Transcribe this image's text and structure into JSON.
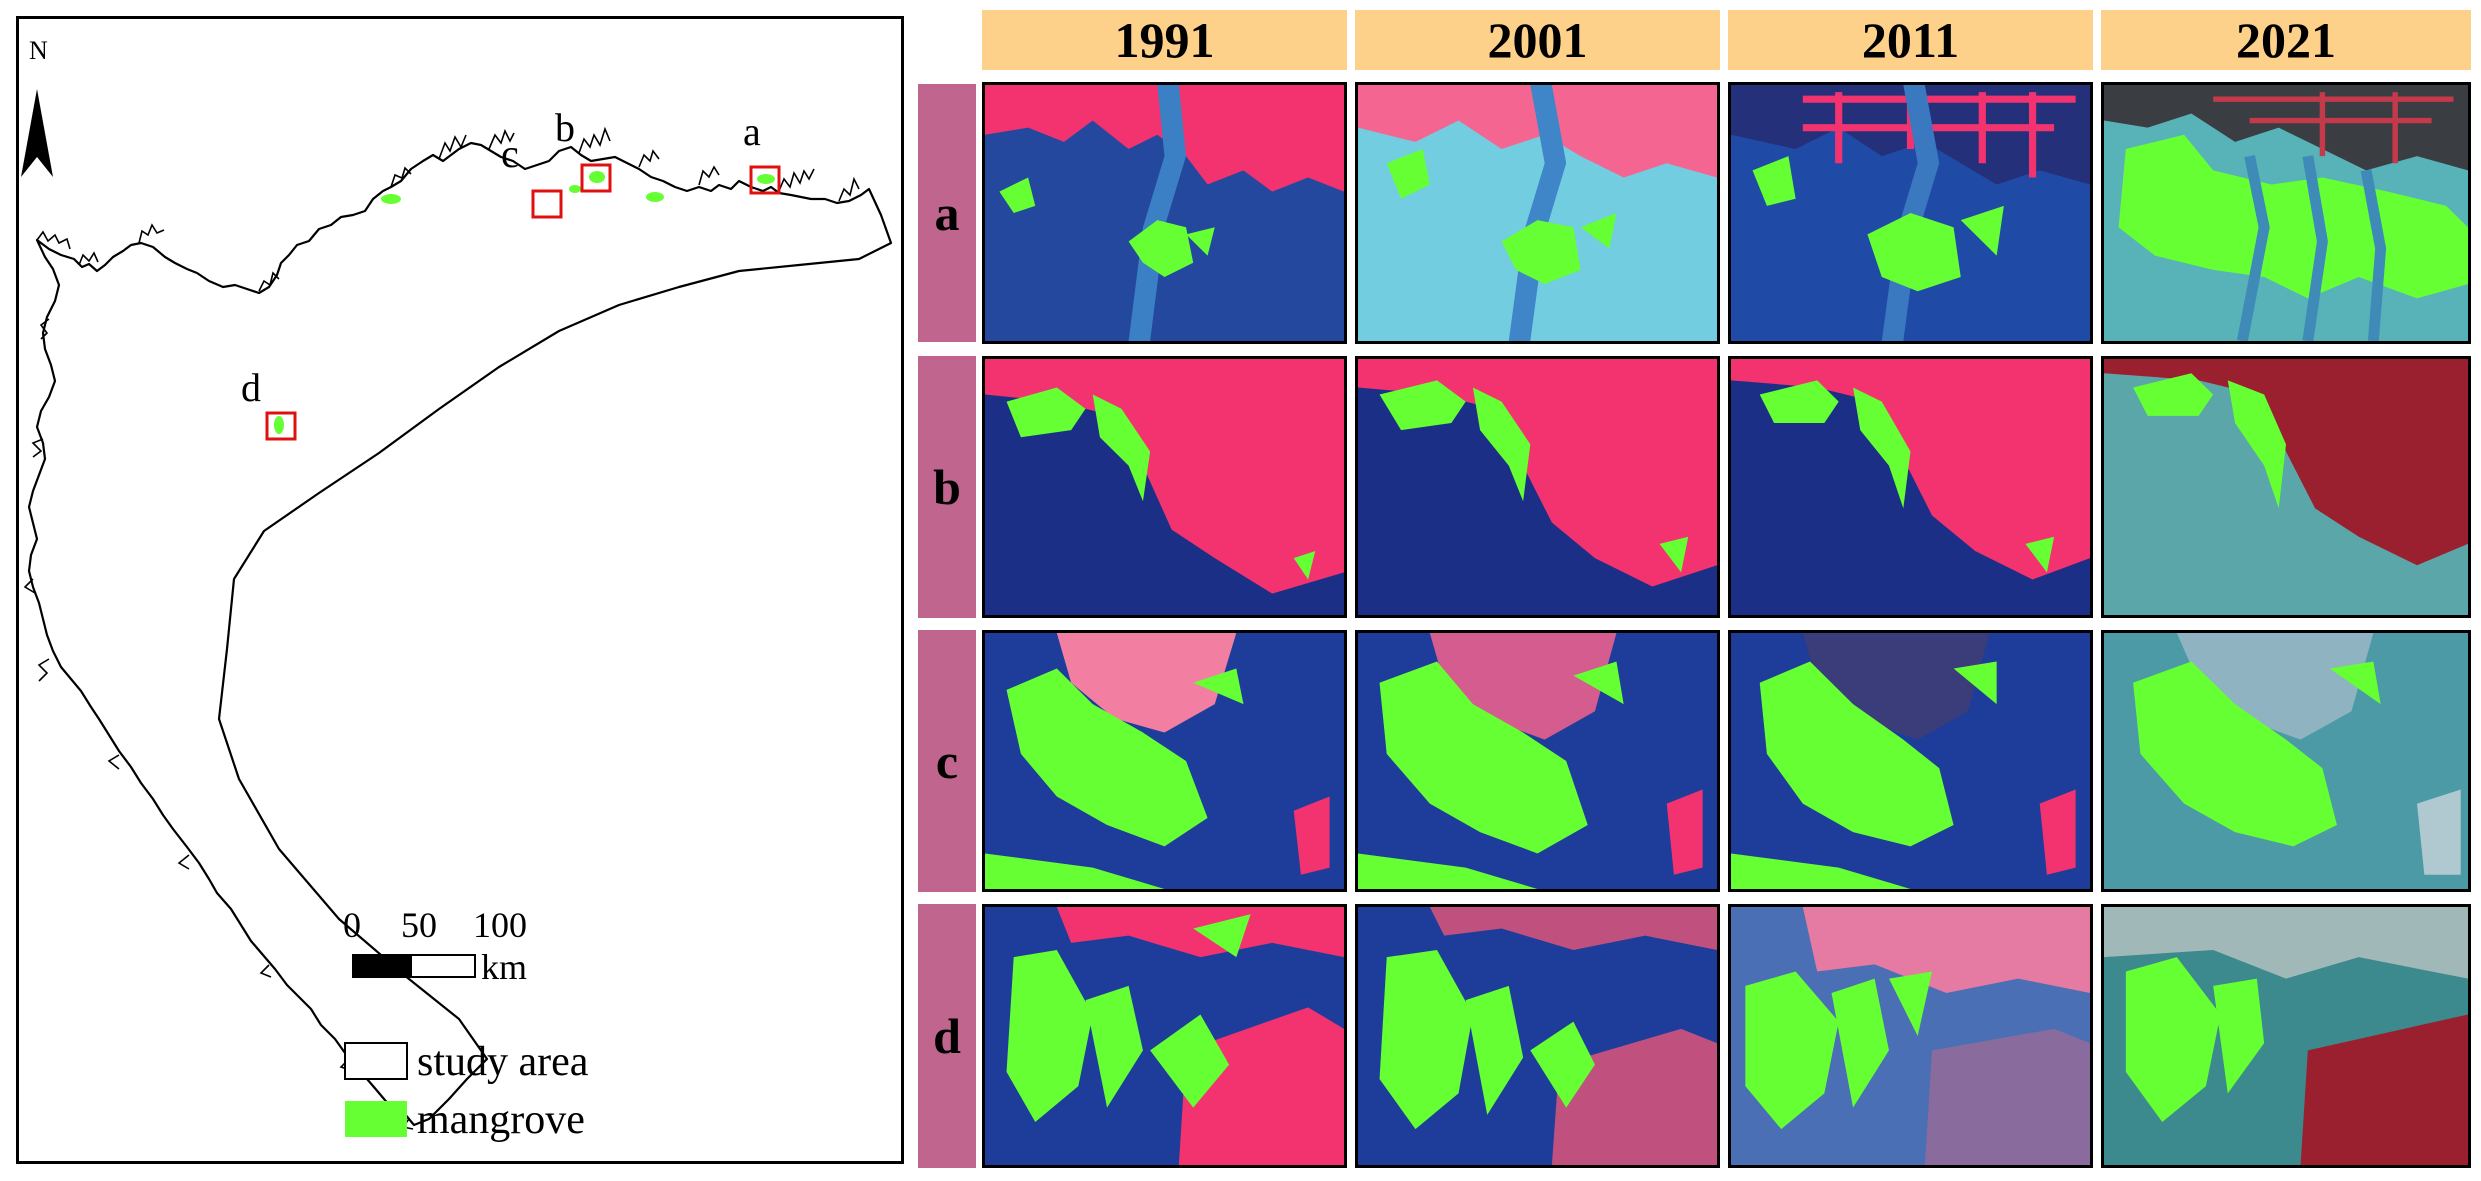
{
  "overview_map": {
    "north_label": "N",
    "site_labels": [
      "a",
      "b",
      "c",
      "d"
    ],
    "scale_bar": {
      "ticks": [
        "0",
        "50",
        "100"
      ],
      "unit": "km"
    },
    "legend": [
      {
        "label": "study area",
        "swatch": "#ffffff"
      },
      {
        "label": "mangrove",
        "swatch": "#66ff33"
      }
    ]
  },
  "years": [
    "1991",
    "2001",
    "2011",
    "2021"
  ],
  "sites": [
    "a",
    "b",
    "c",
    "d"
  ],
  "colors": {
    "year_header": "#fdd18a",
    "row_label": "#c0658e",
    "mangrove": "#66ff33",
    "water_deep": "#1f3f9a",
    "land_pink": "#f0306c",
    "tidal_flat": "#6fc7d8",
    "highlight_box": "#e01010"
  }
}
